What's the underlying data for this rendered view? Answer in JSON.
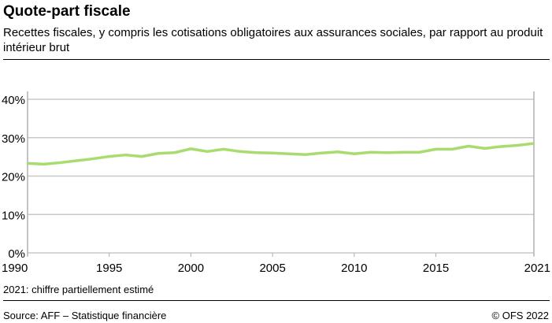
{
  "title": "Quote-part fiscale",
  "subtitle": "Recettes fiscales, y compris les cotisations obligatoires aux assurances sociales, par rapport au produit intérieur brut",
  "note": "2021: chiffre partiellement estimé",
  "source": "Source: AFF –  Statistique financière",
  "copyright": "© OFS 2022",
  "chart_data": {
    "type": "line",
    "title": "",
    "xlabel": "",
    "ylabel": "",
    "xlim": [
      1990,
      2021
    ],
    "ylim": [
      0,
      40
    ],
    "grid": true,
    "x_ticks": [
      "1990",
      "1995",
      "2000",
      "2005",
      "2010",
      "2015",
      "2021"
    ],
    "y_ticks": [
      "0%",
      "10%",
      "20%",
      "30%",
      "40%"
    ],
    "line_color": "#a8dc6e",
    "x": [
      1990,
      1991,
      1992,
      1993,
      1994,
      1995,
      1996,
      1997,
      1998,
      1999,
      2000,
      2001,
      2002,
      2003,
      2004,
      2005,
      2006,
      2007,
      2008,
      2009,
      2010,
      2011,
      2012,
      2013,
      2014,
      2015,
      2016,
      2017,
      2018,
      2019,
      2020,
      2021
    ],
    "values": [
      23.3,
      23.1,
      23.5,
      24.0,
      24.5,
      25.1,
      25.5,
      25.1,
      25.9,
      26.1,
      27.1,
      26.4,
      27.0,
      26.4,
      26.1,
      26.0,
      25.8,
      25.6,
      26.0,
      26.3,
      25.8,
      26.2,
      26.1,
      26.2,
      26.2,
      27.0,
      27.0,
      27.8,
      27.2,
      27.7,
      28.0,
      28.5
    ]
  }
}
